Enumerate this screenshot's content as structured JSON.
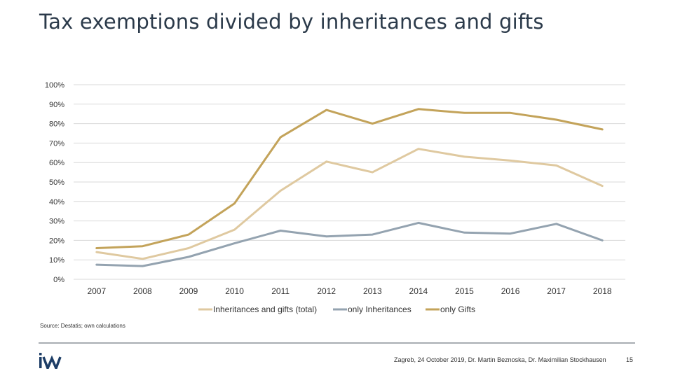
{
  "title": "Tax exemptions divided by inheritances and gifts",
  "chart_data": {
    "type": "line",
    "title": "Tax exemptions divided by inheritances and gifts",
    "xlabel": "",
    "ylabel": "",
    "ylim": [
      0,
      100
    ],
    "y_ticks": [
      "0%",
      "10%",
      "20%",
      "30%",
      "40%",
      "50%",
      "60%",
      "70%",
      "80%",
      "90%",
      "100%"
    ],
    "categories": [
      "2007",
      "2008",
      "2009",
      "2010",
      "2011",
      "2012",
      "2013",
      "2014",
      "2015",
      "2016",
      "2017",
      "2018"
    ],
    "series": [
      {
        "name": "Inheritances and gifts (total)",
        "color": "#dfc9a0",
        "values": [
          14,
          10.5,
          16,
          25.5,
          45.5,
          60.5,
          55,
          67,
          63,
          61,
          58.5,
          48
        ]
      },
      {
        "name": "only Inheritances",
        "color": "#94a3b0",
        "values": [
          7.5,
          6.8,
          11.5,
          18.5,
          25,
          22,
          23,
          29,
          24,
          23.5,
          28.5,
          20
        ]
      },
      {
        "name": "only Gifts",
        "color": "#c3a35a",
        "values": [
          16,
          17,
          23,
          39,
          73,
          87,
          80,
          87.5,
          85.5,
          85.5,
          82,
          77
        ]
      }
    ],
    "grid": true,
    "legend_position": "bottom"
  },
  "source": "Source: Destatis; own calculations",
  "footer": "Zagreb, 24 October 2019, Dr. Martin Beznoska, Dr. Maximilian Stockhausen",
  "page_number": "15",
  "logo_text": "iW",
  "colors": {
    "axis": "#d9d9d9",
    "grid": "#d9d9d9",
    "logo": "#1d3d66"
  }
}
